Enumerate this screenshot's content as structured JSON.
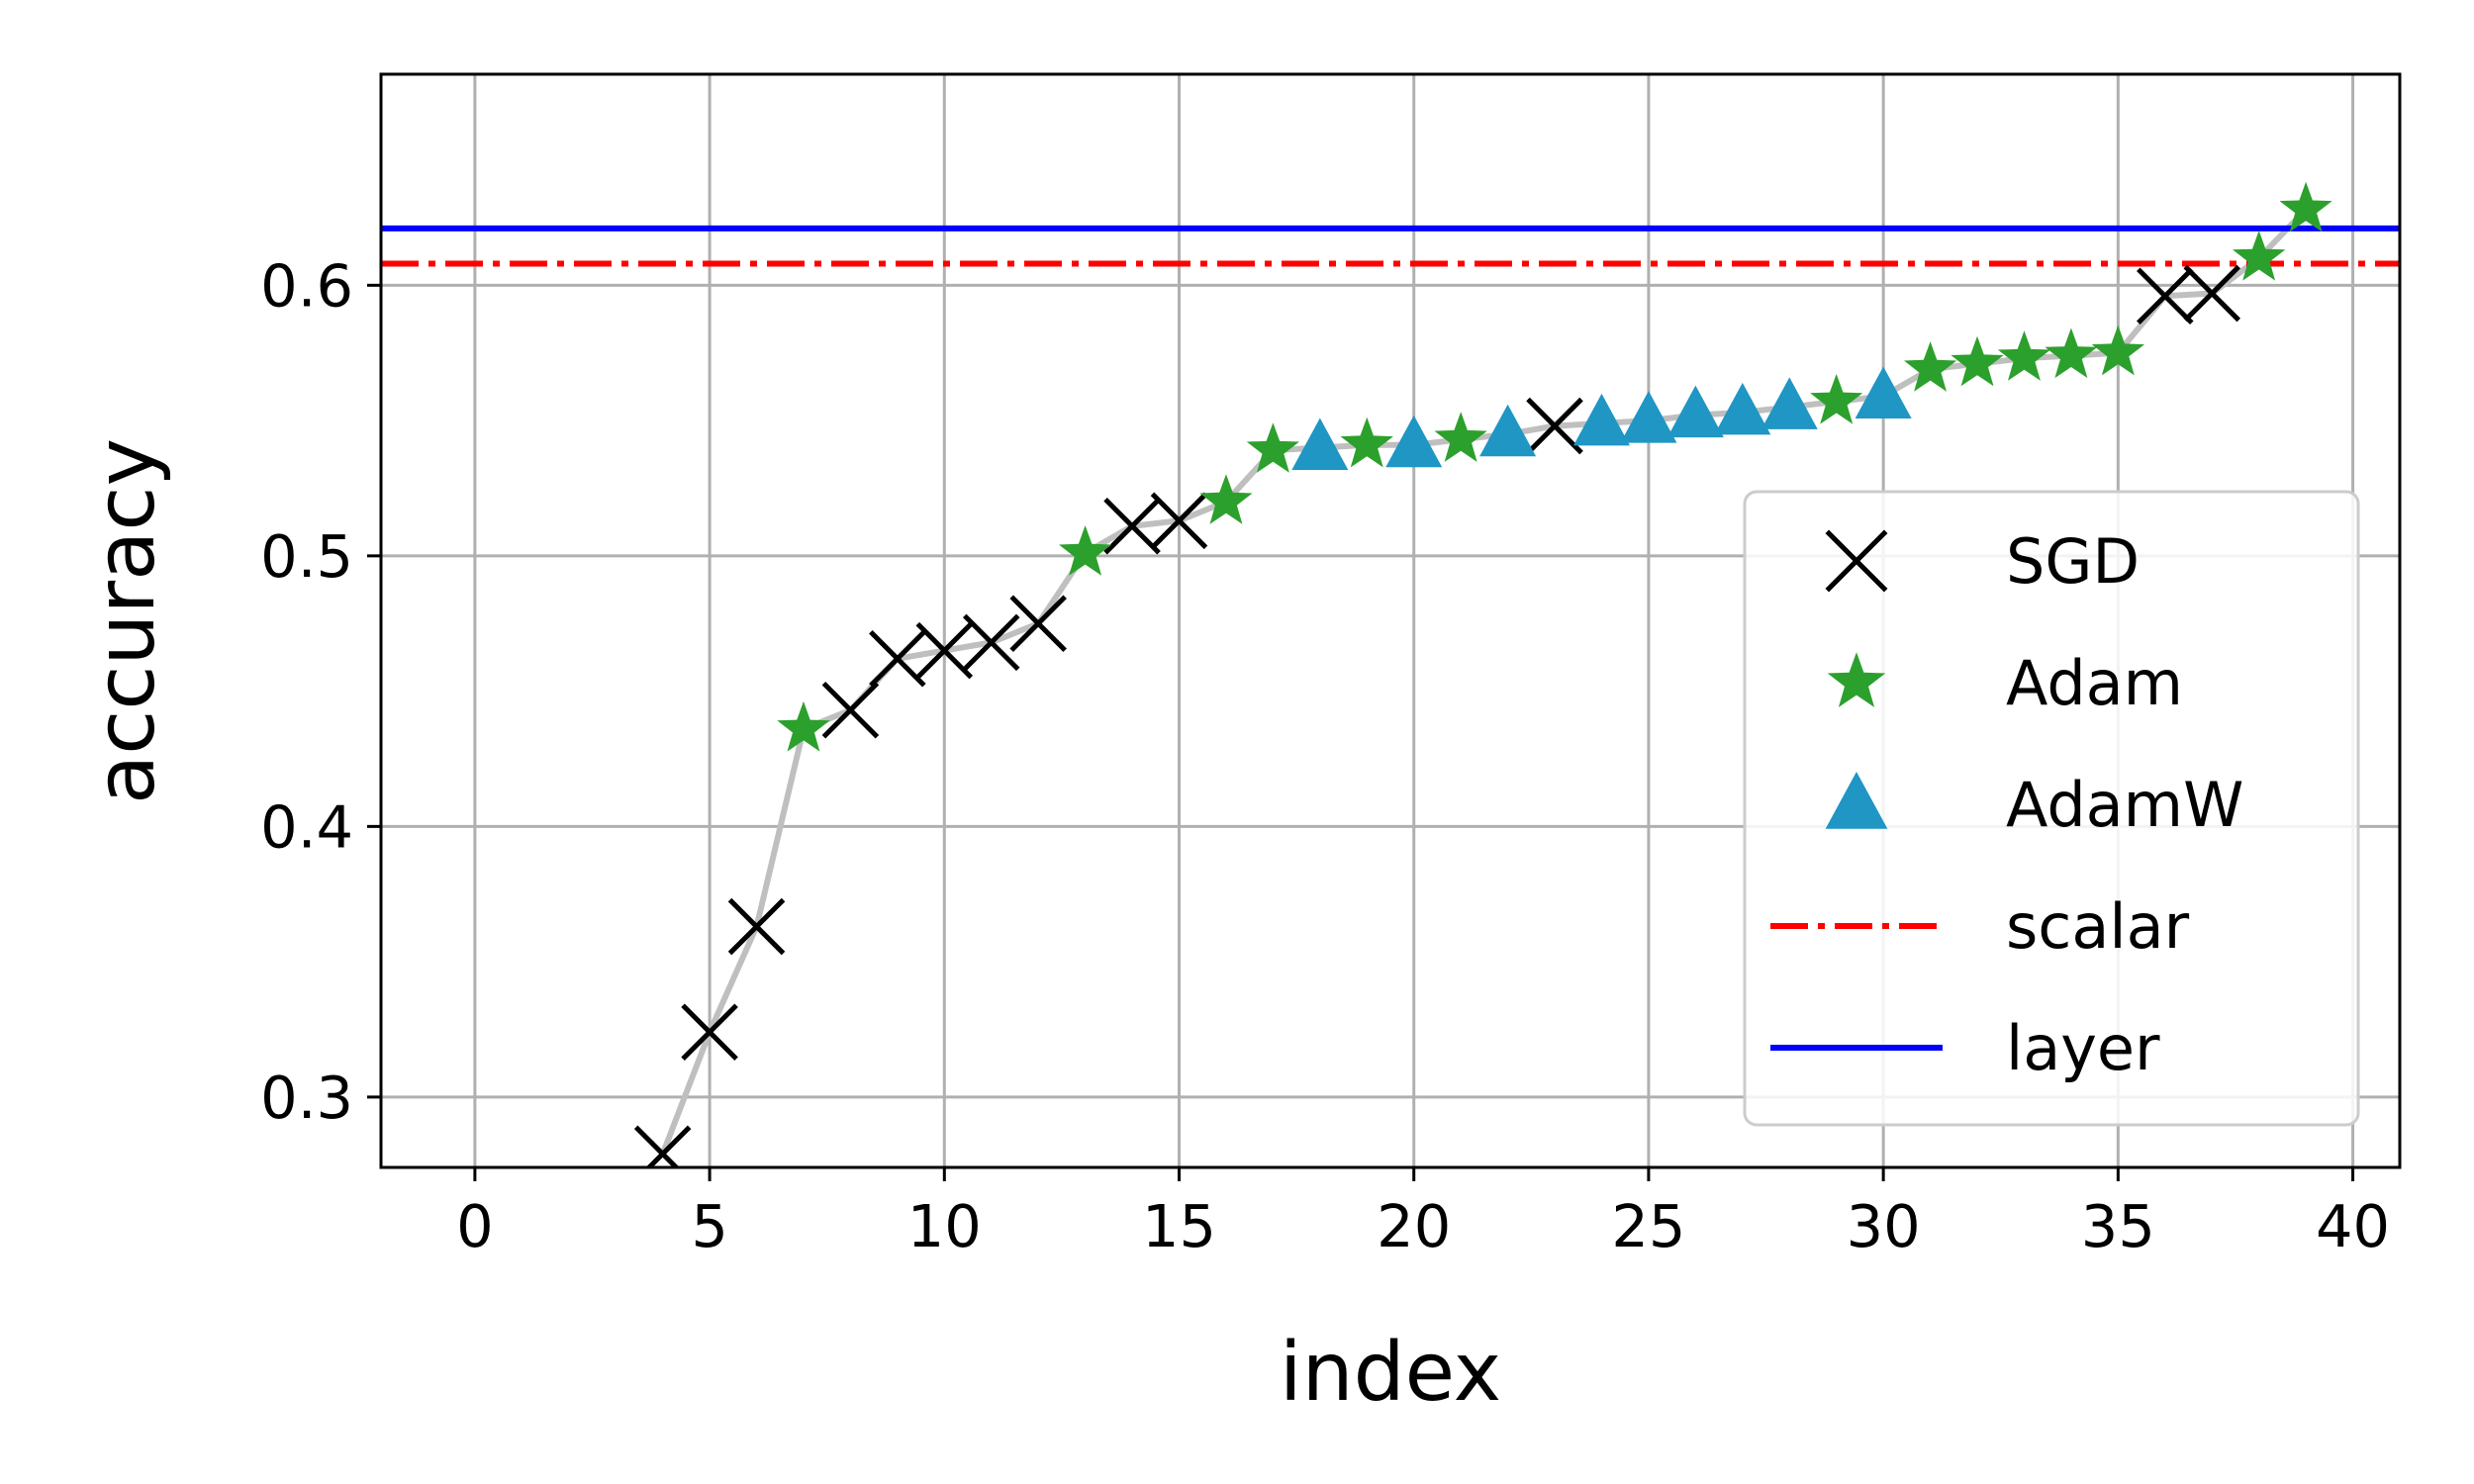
{
  "chart_data": {
    "type": "scatter",
    "xlabel": "index",
    "ylabel": "accuracy",
    "xlim": [
      -2,
      41
    ],
    "ylim": [
      0.274,
      0.678
    ],
    "xticks": [
      0,
      5,
      10,
      15,
      20,
      25,
      30,
      35,
      40
    ],
    "yticks": [
      0.3,
      0.4,
      0.5,
      0.6
    ],
    "xtick_labels": [
      "0",
      "5",
      "10",
      "15",
      "20",
      "25",
      "30",
      "35",
      "40"
    ],
    "ytick_labels": [
      "0.3",
      "0.4",
      "0.5",
      "0.6"
    ],
    "grid": true,
    "legend_position": "lower-right",
    "colors": {
      "sgd": "#000000",
      "adam": "#2ca02c",
      "adamw": "#1f96c4",
      "scalar": "#ff0000",
      "layer": "#0000ff",
      "trend": "#bfbfbf"
    },
    "trend_line": {
      "x": [
        4,
        5,
        6,
        7,
        8,
        9,
        10,
        11,
        12,
        13,
        14,
        15,
        16,
        17,
        18,
        19,
        20,
        21,
        22,
        23,
        24,
        25,
        26,
        27,
        28,
        29,
        30,
        31,
        32,
        33,
        34,
        35,
        36,
        37,
        38,
        39
      ],
      "y": [
        0.279,
        0.324,
        0.363,
        0.436,
        0.443,
        0.462,
        0.465,
        0.468,
        0.475,
        0.501,
        0.511,
        0.513,
        0.52,
        0.539,
        0.54,
        0.541,
        0.541,
        0.543,
        0.545,
        0.548,
        0.549,
        0.55,
        0.552,
        0.553,
        0.555,
        0.557,
        0.559,
        0.569,
        0.571,
        0.573,
        0.574,
        0.575,
        0.596,
        0.597,
        0.61,
        0.628
      ]
    },
    "series": [
      {
        "name": "SGD",
        "marker": "x",
        "x": [
          4,
          5,
          6,
          8,
          9,
          10,
          11,
          12,
          14,
          15,
          23,
          36,
          37
        ],
        "y": [
          0.279,
          0.324,
          0.363,
          0.443,
          0.462,
          0.465,
          0.468,
          0.475,
          0.511,
          0.513,
          0.548,
          0.596,
          0.597
        ]
      },
      {
        "name": "Adam",
        "marker": "star",
        "x": [
          7,
          13,
          16,
          17,
          19,
          21,
          29,
          31,
          32,
          33,
          34,
          35,
          38,
          39
        ],
        "y": [
          0.436,
          0.501,
          0.52,
          0.539,
          0.541,
          0.543,
          0.557,
          0.569,
          0.571,
          0.573,
          0.574,
          0.575,
          0.61,
          0.628
        ]
      },
      {
        "name": "AdamW",
        "marker": "triangle",
        "x": [
          18,
          20,
          22,
          24,
          25,
          26,
          27,
          28,
          30
        ],
        "y": [
          0.54,
          0.541,
          0.545,
          0.549,
          0.55,
          0.552,
          0.553,
          0.555,
          0.559
        ]
      }
    ],
    "hlines": [
      {
        "name": "scalar",
        "y": 0.608,
        "style": "dashdot"
      },
      {
        "name": "layer",
        "y": 0.621,
        "style": "solid"
      }
    ]
  }
}
